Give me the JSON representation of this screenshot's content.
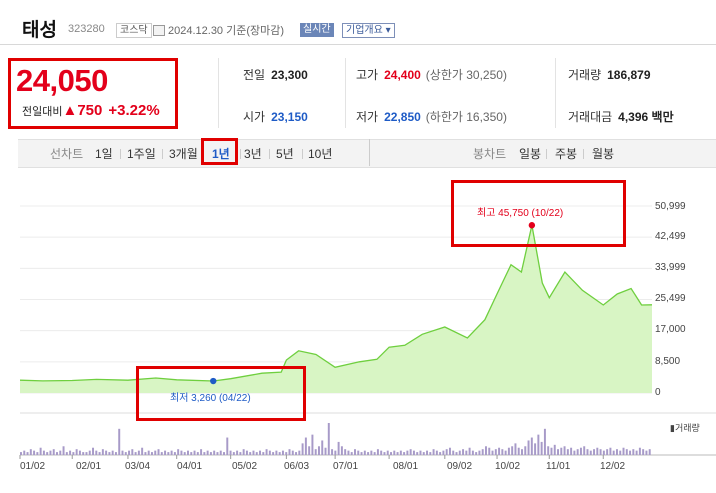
{
  "stock": {
    "name": "태성",
    "code": "323280",
    "market": "코스닥",
    "date": "2024.12.30 기준(장마감)",
    "realtime": "실시간",
    "corp_info": "기업개요 ▾"
  },
  "price": {
    "current": "24,050",
    "change_label": "전일대비",
    "change": "▲750",
    "change_pct": "+3.22%"
  },
  "stats": {
    "prev_close": {
      "label": "전일",
      "value": "23,300"
    },
    "high": {
      "label": "고가",
      "value": "24,400",
      "sub": "(상한가 30,250)"
    },
    "volume": {
      "label": "거래량",
      "value": "186,879"
    },
    "open": {
      "label": "시가",
      "value": "23,150"
    },
    "low": {
      "label": "저가",
      "value": "22,850",
      "sub": "(하한가 16,350)"
    },
    "trade_value": {
      "label": "거래대금",
      "value": "4,396 백만"
    }
  },
  "tabs": {
    "line_chart_label": "선차트",
    "periods": [
      "1일",
      "1주일",
      "3개월",
      "1년",
      "3년",
      "5년",
      "10년"
    ],
    "active_period": "1년",
    "candle_chart_label": "봉차트",
    "candles": [
      "일봉",
      "주봉",
      "월봉"
    ]
  },
  "colors": {
    "up": "#e3001b",
    "down": "#1e5bc6",
    "line": "#6fcf3f",
    "fill": "#d8f5c4",
    "highlight_box": "#e00000"
  },
  "chart_data": {
    "type": "area",
    "y_ticks": [
      "50,999",
      "42,499",
      "33,999",
      "25,499",
      "17,000",
      "8,500",
      "0"
    ],
    "x_ticks": [
      "01/02",
      "02/01",
      "03/04",
      "04/01",
      "05/02",
      "06/03",
      "07/01",
      "08/01",
      "09/02",
      "10/02",
      "11/01",
      "12/02"
    ],
    "high_annotation": "최고 45,750 (10/22)",
    "low_annotation": "최저 3,260 (04/22)",
    "high": {
      "x": "10/22",
      "y": 45750
    },
    "low": {
      "x": "04/22",
      "y": 3260
    },
    "volume_label": "거래량",
    "ylim": [
      0,
      50999
    ],
    "series": [
      {
        "values": [
          [
            "01/02",
            3500
          ],
          [
            "01/15",
            3300
          ],
          [
            "02/01",
            3400
          ],
          [
            "02/15",
            3700
          ],
          [
            "03/04",
            3500
          ],
          [
            "03/20",
            4100
          ],
          [
            "04/01",
            3600
          ],
          [
            "04/22",
            3260
          ],
          [
            "05/02",
            3900
          ],
          [
            "05/20",
            5400
          ],
          [
            "05/31",
            5700
          ],
          [
            "06/03",
            9000
          ],
          [
            "06/10",
            11500
          ],
          [
            "06/20",
            10500
          ],
          [
            "07/01",
            7000
          ],
          [
            "07/15",
            8500
          ],
          [
            "07/25",
            9200
          ],
          [
            "08/01",
            12500
          ],
          [
            "08/10",
            13000
          ],
          [
            "08/20",
            16000
          ],
          [
            "09/02",
            18000
          ],
          [
            "09/15",
            15000
          ],
          [
            "09/25",
            20000
          ],
          [
            "10/02",
            27000
          ],
          [
            "10/10",
            35000
          ],
          [
            "10/16",
            33000
          ],
          [
            "10/22",
            45750
          ],
          [
            "10/28",
            30000
          ],
          [
            "11/01",
            26000
          ],
          [
            "11/10",
            33000
          ],
          [
            "11/20",
            28000
          ],
          [
            "12/02",
            24000
          ],
          [
            "12/10",
            27000
          ],
          [
            "12/18",
            28500
          ],
          [
            "12/24",
            24000
          ],
          [
            "12/30",
            24050
          ]
        ]
      }
    ],
    "volume": [
      2,
      3,
      2,
      4,
      3,
      2,
      5,
      3,
      2,
      3,
      4,
      2,
      3,
      6,
      2,
      3,
      2,
      4,
      3,
      2,
      2,
      3,
      5,
      3,
      2,
      4,
      3,
      2,
      3,
      2,
      18,
      3,
      2,
      3,
      4,
      2,
      3,
      5,
      2,
      3,
      2,
      3,
      4,
      2,
      3,
      2,
      3,
      2,
      4,
      3,
      2,
      3,
      2,
      3,
      2,
      4,
      2,
      3,
      2,
      3,
      2,
      3,
      2,
      12,
      3,
      2,
      3,
      2,
      4,
      3,
      2,
      3,
      2,
      3,
      2,
      4,
      3,
      2,
      3,
      2,
      3,
      2,
      4,
      3,
      2,
      3,
      8,
      12,
      6,
      14,
      4,
      6,
      10,
      5,
      22,
      4,
      3,
      9,
      6,
      4,
      3,
      2,
      4,
      3,
      2,
      3,
      2,
      3,
      2,
      4,
      3,
      2,
      3,
      2,
      3,
      2,
      3,
      2,
      3,
      4,
      3,
      2,
      3,
      2,
      3,
      2,
      4,
      3,
      2,
      3,
      4,
      5,
      3,
      2,
      3,
      4,
      3,
      5,
      3,
      2,
      3,
      4,
      6,
      5,
      3,
      4,
      5,
      4,
      3,
      5,
      6,
      8,
      5,
      4,
      6,
      10,
      12,
      8,
      14,
      9,
      18,
      6,
      5,
      7,
      4,
      5,
      6,
      4,
      5,
      3,
      4,
      5,
      6,
      4,
      3,
      4,
      5,
      4,
      3,
      4,
      5,
      3,
      4,
      3,
      5,
      4,
      3,
      4,
      3,
      5,
      4,
      3,
      4
    ]
  }
}
